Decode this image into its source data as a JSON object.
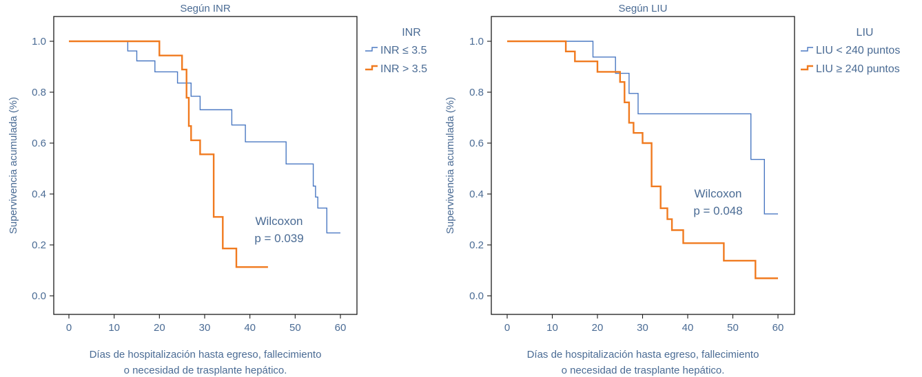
{
  "chart_data": [
    {
      "type": "line",
      "subtype": "kaplan-meier step",
      "title": "Según INR",
      "xlabel": [
        "Días de hospitalización hasta egreso, fallecimiento",
        "o necesidad de trasplante hepático."
      ],
      "ylabel": "Supervivencia acumulada (%)",
      "xlim": [
        0,
        60
      ],
      "ylim": [
        0,
        1.0
      ],
      "xticks": [
        "0",
        "10",
        "20",
        "30",
        "40",
        "50",
        "60"
      ],
      "yticks": [
        "0.0",
        "0.2",
        "0.4",
        "0.6",
        "0.8",
        "1.0"
      ],
      "grid": false,
      "legend": {
        "title": "INR",
        "placement": "outside-top-right",
        "items": [
          {
            "label": "INR ≤ 3.5",
            "color": "#4a78c2"
          },
          {
            "label": "INR > 3.5",
            "color": "#f07a1f"
          }
        ]
      },
      "annotation": [
        "Wilcoxon",
        "p = 0.039"
      ],
      "series": [
        {
          "name": "INR ≤ 3.5",
          "color": "#4a78c2",
          "x": [
            0,
            13,
            15,
            19,
            24,
            27,
            29,
            36,
            39,
            48,
            54,
            54.5,
            55,
            57,
            60
          ],
          "y": [
            1.0,
            0.962,
            0.923,
            0.88,
            0.836,
            0.784,
            0.731,
            0.671,
            0.605,
            0.518,
            0.431,
            0.388,
            0.345,
            0.247,
            0.247
          ]
        },
        {
          "name": "INR > 3.5",
          "color": "#f07a1f",
          "x": [
            0,
            20,
            25,
            26,
            26.5,
            27,
            29,
            32,
            34,
            37,
            44
          ],
          "y": [
            1.0,
            0.944,
            0.889,
            0.778,
            0.667,
            0.611,
            0.556,
            0.31,
            0.186,
            0.113,
            0.113
          ]
        }
      ]
    },
    {
      "type": "line",
      "subtype": "kaplan-meier step",
      "title": "Según LIU",
      "xlabel": [
        "Días de hospitalización hasta egreso, fallecimiento",
        "o necesidad de trasplante hepático."
      ],
      "ylabel": "Supervivencia acumulada (%)",
      "xlim": [
        0,
        60
      ],
      "ylim": [
        0,
        1.0
      ],
      "xticks": [
        "0",
        "10",
        "20",
        "30",
        "40",
        "50",
        "60"
      ],
      "yticks": [
        "0.0",
        "0.2",
        "0.4",
        "0.6",
        "0.8",
        "1.0"
      ],
      "grid": false,
      "legend": {
        "title": "LIU",
        "placement": "outside-top-right",
        "items": [
          {
            "label": "LIU < 240 puntos",
            "color": "#4a78c2"
          },
          {
            "label": "LIU ≥ 240 puntos",
            "color": "#f07a1f"
          }
        ]
      },
      "annotation": [
        "Wilcoxon",
        "p = 0.048"
      ],
      "series": [
        {
          "name": "LIU < 240 puntos",
          "color": "#4a78c2",
          "x": [
            0,
            19,
            24,
            27,
            29,
            54,
            57,
            60
          ],
          "y": [
            1.0,
            0.938,
            0.874,
            0.795,
            0.715,
            0.536,
            0.322,
            0.322
          ]
        },
        {
          "name": "LIU ≥ 240 puntos",
          "color": "#f07a1f",
          "x": [
            0,
            13,
            15,
            20,
            24,
            25,
            26,
            27,
            28,
            30,
            32,
            34,
            35.5,
            36.5,
            39,
            48,
            55,
            60
          ],
          "y": [
            1.0,
            0.96,
            0.921,
            0.88,
            0.88,
            0.84,
            0.76,
            0.68,
            0.64,
            0.6,
            0.43,
            0.344,
            0.301,
            0.258,
            0.207,
            0.138,
            0.069,
            0.069
          ]
        }
      ]
    }
  ]
}
